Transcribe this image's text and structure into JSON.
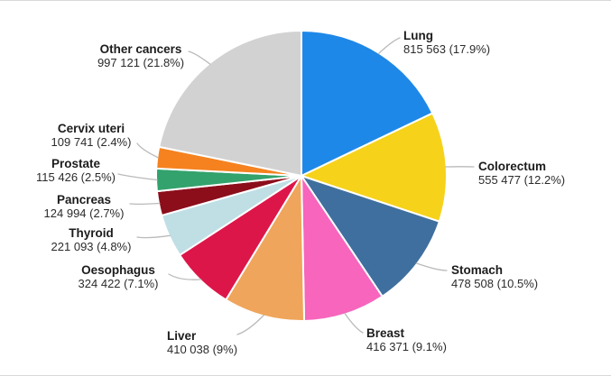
{
  "chart_data": {
    "type": "pie",
    "title": "",
    "direction": "clockwise",
    "start_angle_deg": 0,
    "legend": "none",
    "background_color": "#FFFFFF",
    "slice_border_color": "#FFFFFF",
    "leader_line_color": "#BABABA",
    "categories": [
      "Lung",
      "Colorectum",
      "Stomach",
      "Breast",
      "Liver",
      "Oesophagus",
      "Thyroid",
      "Pancreas",
      "Prostate",
      "Cervix uteri",
      "Other cancers"
    ],
    "values": [
      815563,
      555477,
      478508,
      416371,
      410038,
      324422,
      221093,
      124994,
      115426,
      109741,
      997121
    ],
    "percentages": [
      17.9,
      12.2,
      10.5,
      9.1,
      9,
      7.1,
      4.8,
      2.7,
      2.5,
      2.4,
      21.8
    ],
    "slices": [
      {
        "label": "Lung",
        "value_label": "815 563 (17.9%)",
        "color": "#1E88E8"
      },
      {
        "label": "Colorectum",
        "value_label": "555 477 (12.2%)",
        "color": "#F6D21B"
      },
      {
        "label": "Stomach",
        "value_label": "478 508 (10.5%)",
        "color": "#3F6F9E"
      },
      {
        "label": "Breast",
        "value_label": "416 371 (9.1%)",
        "color": "#F765BD"
      },
      {
        "label": "Liver",
        "value_label": "410 038 (9%)",
        "color": "#EFA55B"
      },
      {
        "label": "Oesophagus",
        "value_label": "324 422 (7.1%)",
        "color": "#DD1649"
      },
      {
        "label": "Thyroid",
        "value_label": "221 093 (4.8%)",
        "color": "#BFDFE5"
      },
      {
        "label": "Pancreas",
        "value_label": "124 994 (2.7%)",
        "color": "#8C0E1B"
      },
      {
        "label": "Prostate",
        "value_label": "115 426 (2.5%)",
        "color": "#33A26C"
      },
      {
        "label": "Cervix uteri",
        "value_label": "109 741 (2.4%)",
        "color": "#F5821F"
      },
      {
        "label": "Other cancers",
        "value_label": "997 121 (21.8%)",
        "color": "#D2D2D2"
      }
    ]
  }
}
